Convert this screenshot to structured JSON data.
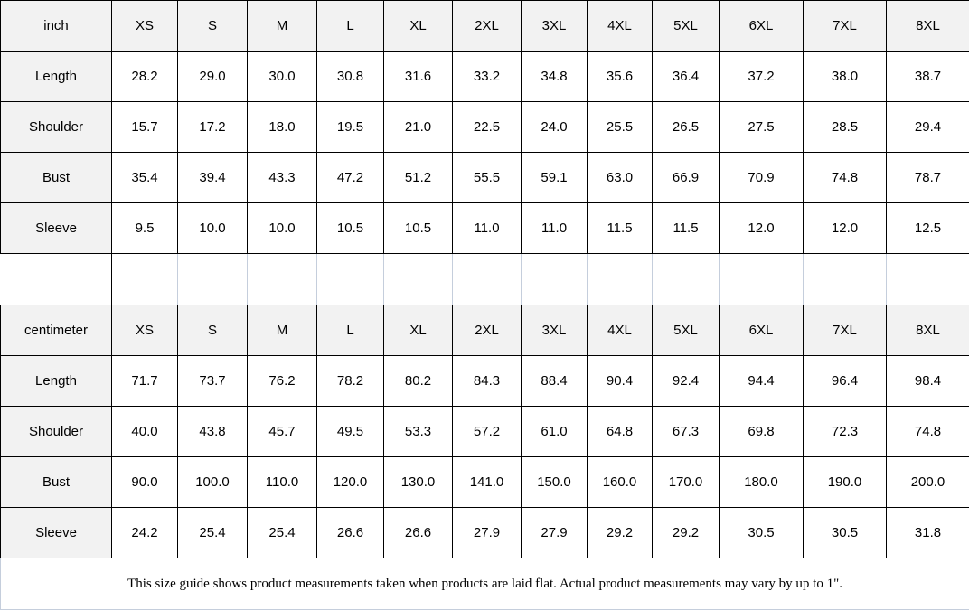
{
  "chart_data": [
    {
      "type": "table",
      "title": "inch",
      "columns": [
        "XS",
        "S",
        "M",
        "L",
        "XL",
        "2XL",
        "3XL",
        "4XL",
        "5XL",
        "6XL",
        "7XL",
        "8XL"
      ],
      "rows": [
        {
          "label": "Length",
          "values": [
            "28.2",
            "29.0",
            "30.0",
            "30.8",
            "31.6",
            "33.2",
            "34.8",
            "35.6",
            "36.4",
            "37.2",
            "38.0",
            "38.7"
          ]
        },
        {
          "label": "Shoulder",
          "values": [
            "15.7",
            "17.2",
            "18.0",
            "19.5",
            "21.0",
            "22.5",
            "24.0",
            "25.5",
            "26.5",
            "27.5",
            "28.5",
            "29.4"
          ]
        },
        {
          "label": "Bust",
          "values": [
            "35.4",
            "39.4",
            "43.3",
            "47.2",
            "51.2",
            "55.5",
            "59.1",
            "63.0",
            "66.9",
            "70.9",
            "74.8",
            "78.7"
          ]
        },
        {
          "label": "Sleeve",
          "values": [
            "9.5",
            "10.0",
            "10.0",
            "10.5",
            "10.5",
            "11.0",
            "11.0",
            "11.5",
            "11.5",
            "12.0",
            "12.0",
            "12.5"
          ]
        }
      ]
    },
    {
      "type": "table",
      "title": "centimeter",
      "columns": [
        "XS",
        "S",
        "M",
        "L",
        "XL",
        "2XL",
        "3XL",
        "4XL",
        "5XL",
        "6XL",
        "7XL",
        "8XL"
      ],
      "rows": [
        {
          "label": "Length",
          "values": [
            "71.7",
            "73.7",
            "76.2",
            "78.2",
            "80.2",
            "84.3",
            "88.4",
            "90.4",
            "92.4",
            "94.4",
            "96.4",
            "98.4"
          ]
        },
        {
          "label": "Shoulder",
          "values": [
            "40.0",
            "43.8",
            "45.7",
            "49.5",
            "53.3",
            "57.2",
            "61.0",
            "64.8",
            "67.3",
            "69.8",
            "72.3",
            "74.8"
          ]
        },
        {
          "label": "Bust",
          "values": [
            "90.0",
            "100.0",
            "110.0",
            "120.0",
            "130.0",
            "141.0",
            "150.0",
            "160.0",
            "170.0",
            "180.0",
            "190.0",
            "200.0"
          ]
        },
        {
          "label": "Sleeve",
          "values": [
            "24.2",
            "25.4",
            "25.4",
            "26.6",
            "26.6",
            "27.9",
            "27.9",
            "29.2",
            "29.2",
            "30.5",
            "30.5",
            "31.8"
          ]
        }
      ]
    }
  ],
  "footnote": "This size guide shows product measurements taken when products are laid flat. Actual product measurements may vary by up to 1\".",
  "colors": {
    "header_background": "#f2f2f2",
    "grid_border": "#000000",
    "spacer_line": "#c5cedc"
  }
}
